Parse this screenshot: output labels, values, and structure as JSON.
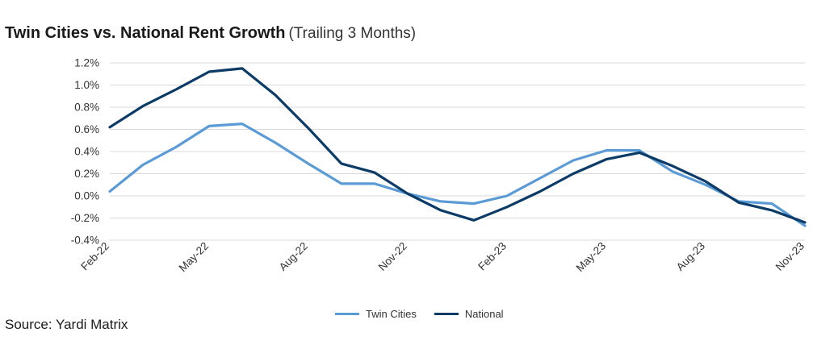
{
  "title": {
    "main": "Twin Cities vs. National Rent Growth",
    "sub": "(Trailing 3 Months)"
  },
  "source": "Source: Yardi Matrix",
  "colors": {
    "twin_cities": "#5B9BD5",
    "national": "#0B3B66",
    "grid": "#d9d9d9"
  },
  "chart_data": {
    "type": "line",
    "x": [
      "Feb-22",
      "Mar-22",
      "Apr-22",
      "May-22",
      "Jun-22",
      "Jul-22",
      "Aug-22",
      "Sep-22",
      "Oct-22",
      "Nov-22",
      "Dec-22",
      "Jan-23",
      "Feb-23",
      "Mar-23",
      "Apr-23",
      "May-23",
      "Jun-23",
      "Jul-23",
      "Aug-23",
      "Sep-23",
      "Oct-23",
      "Nov-23"
    ],
    "x_tick_labels": [
      "Feb-22",
      "May-22",
      "Aug-22",
      "Nov-22",
      "Feb-23",
      "May-23",
      "Aug-23",
      "Nov-23"
    ],
    "x_tick_indices": [
      0,
      3,
      6,
      9,
      12,
      15,
      18,
      21
    ],
    "ylim": [
      -0.4,
      1.2
    ],
    "y_ticks": [
      -0.4,
      -0.2,
      0.0,
      0.2,
      0.4,
      0.6,
      0.8,
      1.0,
      1.2
    ],
    "y_tick_labels": [
      "-0.4%",
      "-0.2%",
      "0.0%",
      "0.2%",
      "0.4%",
      "0.6%",
      "0.8%",
      "1.0%",
      "1.2%"
    ],
    "grid": true,
    "legend": "bottom-center",
    "series": [
      {
        "name": "Twin Cities",
        "color": "#5B9BD5",
        "values": [
          0.04,
          0.28,
          0.44,
          0.63,
          0.65,
          0.48,
          0.29,
          0.11,
          0.11,
          0.02,
          -0.05,
          -0.07,
          0.0,
          0.16,
          0.32,
          0.41,
          0.41,
          0.22,
          0.1,
          -0.05,
          -0.07,
          -0.27
        ]
      },
      {
        "name": "National",
        "color": "#0B3B66",
        "values": [
          0.62,
          0.81,
          0.96,
          1.12,
          1.15,
          0.91,
          0.61,
          0.29,
          0.21,
          0.02,
          -0.13,
          -0.22,
          -0.1,
          0.04,
          0.2,
          0.33,
          0.39,
          0.27,
          0.13,
          -0.06,
          -0.13,
          -0.24
        ]
      }
    ]
  }
}
